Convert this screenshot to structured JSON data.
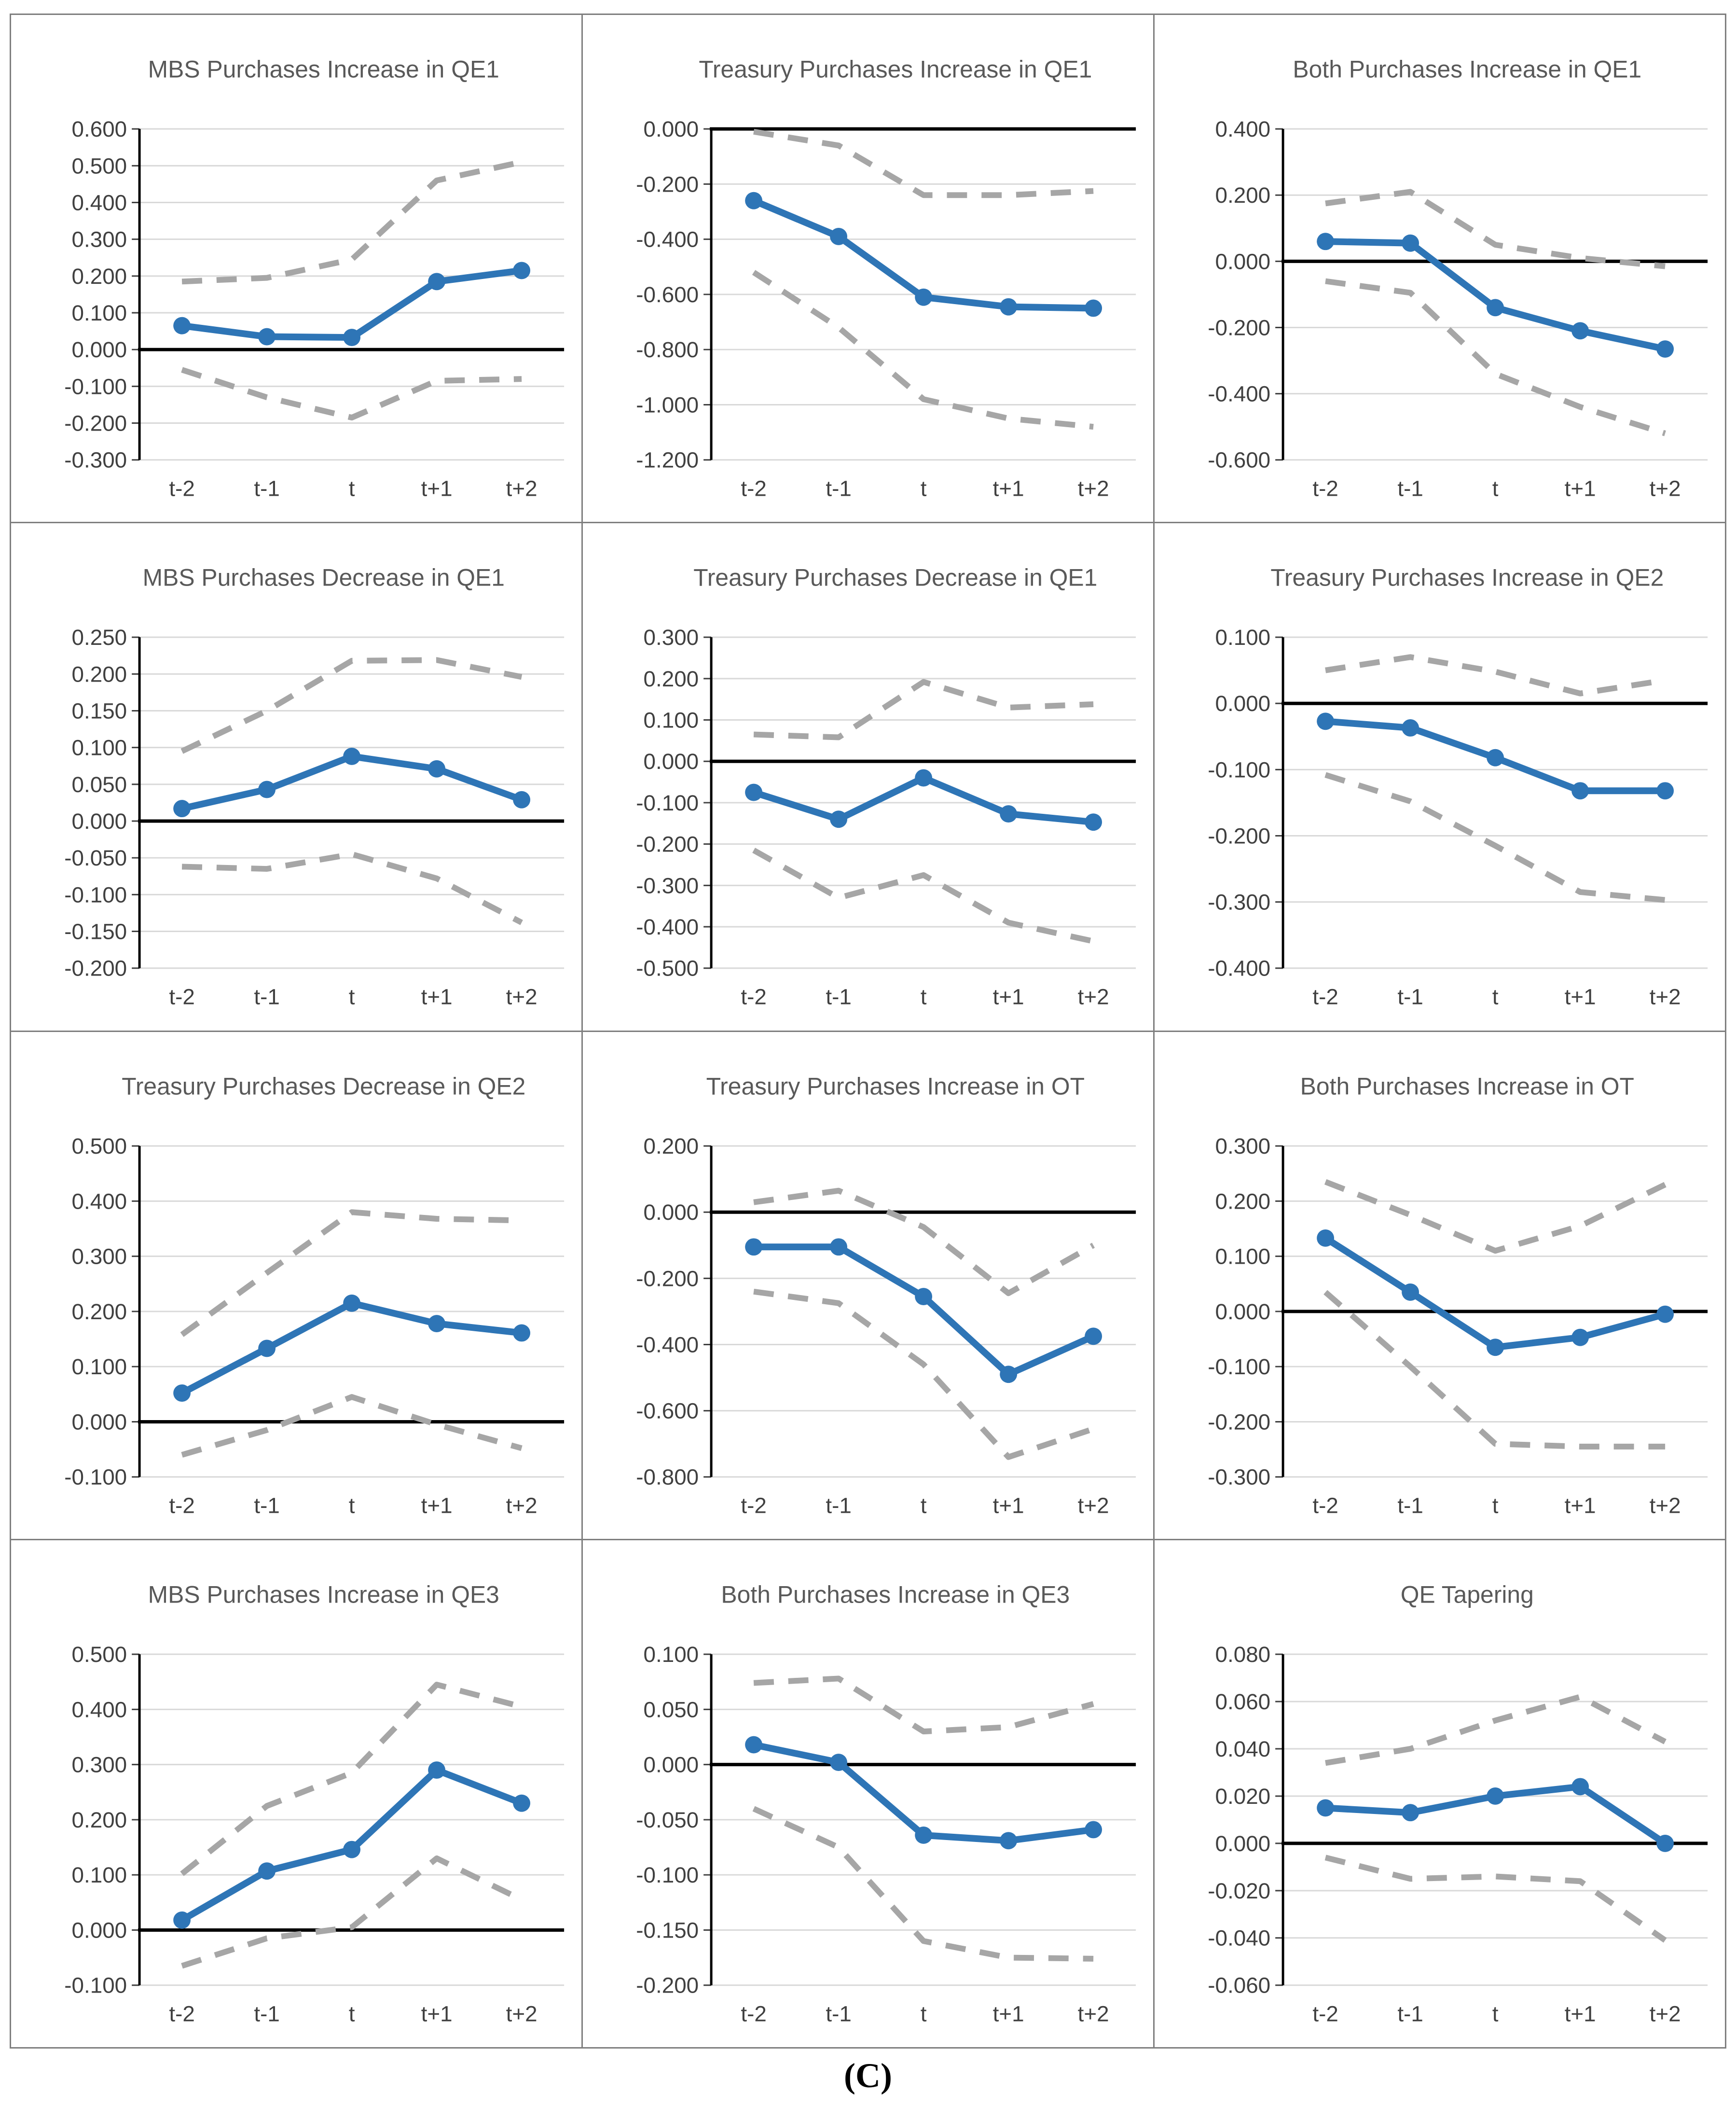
{
  "caption": "(C)",
  "colors": {
    "line": "#2E75B6",
    "band": "#A6A6A6",
    "grid": "#D9D9D9",
    "zero_line": "#000000",
    "axis": "#000000",
    "title": "#595959",
    "tick": "#404040",
    "panel_border": "#7F7F7F",
    "background": "#FFFFFF"
  },
  "x_labels": [
    "t-2",
    "t-1",
    "t",
    "t+1",
    "t+2"
  ],
  "chart_data": [
    {
      "type": "line",
      "title": "MBS Purchases Increase in QE1",
      "categories": [
        "t-2",
        "t-1",
        "t",
        "t+1",
        "t+2"
      ],
      "ylim": [
        -0.3,
        0.6
      ],
      "ytick_labels": [
        "0.600",
        "0.500",
        "0.400",
        "0.300",
        "0.200",
        "0.100",
        "0.000",
        "-0.100",
        "-0.200",
        "-0.300"
      ],
      "series": [
        {
          "name": "estimate",
          "style": "solid",
          "values": [
            0.065,
            0.035,
            0.033,
            0.185,
            0.215
          ]
        },
        {
          "name": "upper-band",
          "style": "dashed",
          "values": [
            0.185,
            0.195,
            0.245,
            0.46,
            0.51
          ]
        },
        {
          "name": "lower-band",
          "style": "dashed",
          "values": [
            -0.055,
            -0.13,
            -0.185,
            -0.085,
            -0.08
          ]
        }
      ]
    },
    {
      "type": "line",
      "title": "Treasury Purchases Increase in QE1",
      "categories": [
        "t-2",
        "t-1",
        "t",
        "t+1",
        "t+2"
      ],
      "ylim": [
        -1.2,
        0.0
      ],
      "ytick_labels": [
        "0.000",
        "-0.200",
        "-0.400",
        "-0.600",
        "-0.800",
        "-1.000",
        "-1.200"
      ],
      "series": [
        {
          "name": "estimate",
          "style": "solid",
          "values": [
            -0.26,
            -0.39,
            -0.61,
            -0.645,
            -0.65
          ]
        },
        {
          "name": "upper-band",
          "style": "dashed",
          "values": [
            -0.01,
            -0.06,
            -0.24,
            -0.24,
            -0.225
          ]
        },
        {
          "name": "lower-band",
          "style": "dashed",
          "values": [
            -0.52,
            -0.72,
            -0.98,
            -1.05,
            -1.08
          ]
        }
      ]
    },
    {
      "type": "line",
      "title": "Both Purchases Increase in QE1",
      "categories": [
        "t-2",
        "t-1",
        "t",
        "t+1",
        "t+2"
      ],
      "ylim": [
        -0.6,
        0.4
      ],
      "ytick_labels": [
        "0.400",
        "0.200",
        "0.000",
        "-0.200",
        "-0.400",
        "-0.600"
      ],
      "series": [
        {
          "name": "estimate",
          "style": "solid",
          "values": [
            0.06,
            0.055,
            -0.14,
            -0.21,
            -0.265
          ]
        },
        {
          "name": "upper-band",
          "style": "dashed",
          "values": [
            0.175,
            0.21,
            0.05,
            0.01,
            -0.015
          ]
        },
        {
          "name": "lower-band",
          "style": "dashed",
          "values": [
            -0.06,
            -0.095,
            -0.34,
            -0.44,
            -0.52
          ]
        }
      ]
    },
    {
      "type": "line",
      "title": "MBS Purchases Decrease in QE1",
      "categories": [
        "t-2",
        "t-1",
        "t",
        "t+1",
        "t+2"
      ],
      "ylim": [
        -0.2,
        0.25
      ],
      "ytick_labels": [
        "0.250",
        "0.200",
        "0.150",
        "0.100",
        "0.050",
        "0.000",
        "-0.050",
        "-0.100",
        "-0.150",
        "-0.200"
      ],
      "series": [
        {
          "name": "estimate",
          "style": "solid",
          "values": [
            0.017,
            0.043,
            0.088,
            0.071,
            0.029
          ]
        },
        {
          "name": "upper-band",
          "style": "dashed",
          "values": [
            0.095,
            0.15,
            0.218,
            0.219,
            0.196
          ]
        },
        {
          "name": "lower-band",
          "style": "dashed",
          "values": [
            -0.062,
            -0.065,
            -0.045,
            -0.078,
            -0.138
          ]
        }
      ]
    },
    {
      "type": "line",
      "title": "Treasury Purchases Decrease in QE1",
      "categories": [
        "t-2",
        "t-1",
        "t",
        "t+1",
        "t+2"
      ],
      "ylim": [
        -0.5,
        0.3
      ],
      "ytick_labels": [
        "0.300",
        "0.200",
        "0.100",
        "0.000",
        "-0.100",
        "-0.200",
        "-0.300",
        "-0.400",
        "-0.500"
      ],
      "series": [
        {
          "name": "estimate",
          "style": "solid",
          "values": [
            -0.075,
            -0.14,
            -0.04,
            -0.127,
            -0.147
          ]
        },
        {
          "name": "upper-band",
          "style": "dashed",
          "values": [
            0.065,
            0.058,
            0.192,
            0.13,
            0.138
          ]
        },
        {
          "name": "lower-band",
          "style": "dashed",
          "values": [
            -0.215,
            -0.33,
            -0.275,
            -0.39,
            -0.435
          ]
        }
      ]
    },
    {
      "type": "line",
      "title": "Treasury Purchases Increase in QE2",
      "categories": [
        "t-2",
        "t-1",
        "t",
        "t+1",
        "t+2"
      ],
      "ylim": [
        -0.4,
        0.1
      ],
      "ytick_labels": [
        "0.100",
        "0.000",
        "-0.100",
        "-0.200",
        "-0.300",
        "-0.400"
      ],
      "series": [
        {
          "name": "estimate",
          "style": "solid",
          "values": [
            -0.027,
            -0.037,
            -0.082,
            -0.132,
            -0.132
          ]
        },
        {
          "name": "upper-band",
          "style": "dashed",
          "values": [
            0.05,
            0.07,
            0.048,
            0.015,
            0.035
          ]
        },
        {
          "name": "lower-band",
          "style": "dashed",
          "values": [
            -0.108,
            -0.148,
            -0.215,
            -0.285,
            -0.297
          ]
        }
      ]
    },
    {
      "type": "line",
      "title": "Treasury Purchases Decrease in QE2",
      "categories": [
        "t-2",
        "t-1",
        "t",
        "t+1",
        "t+2"
      ],
      "ylim": [
        -0.1,
        0.5
      ],
      "ytick_labels": [
        "0.500",
        "0.400",
        "0.300",
        "0.200",
        "0.100",
        "0.000",
        "-0.100"
      ],
      "series": [
        {
          "name": "estimate",
          "style": "solid",
          "values": [
            0.052,
            0.133,
            0.215,
            0.178,
            0.161
          ]
        },
        {
          "name": "upper-band",
          "style": "dashed",
          "values": [
            0.158,
            0.27,
            0.38,
            0.368,
            0.365
          ]
        },
        {
          "name": "lower-band",
          "style": "dashed",
          "values": [
            -0.06,
            -0.015,
            0.045,
            -0.005,
            -0.048
          ]
        }
      ]
    },
    {
      "type": "line",
      "title": "Treasury Purchases Increase in OT",
      "categories": [
        "t-2",
        "t-1",
        "t",
        "t+1",
        "t+2"
      ],
      "ylim": [
        -0.8,
        0.2
      ],
      "ytick_labels": [
        "0.200",
        "0.000",
        "-0.200",
        "-0.400",
        "-0.600",
        "-0.800"
      ],
      "series": [
        {
          "name": "estimate",
          "style": "solid",
          "values": [
            -0.105,
            -0.105,
            -0.255,
            -0.49,
            -0.375
          ]
        },
        {
          "name": "upper-band",
          "style": "dashed",
          "values": [
            0.03,
            0.065,
            -0.045,
            -0.245,
            -0.1
          ]
        },
        {
          "name": "lower-band",
          "style": "dashed",
          "values": [
            -0.24,
            -0.275,
            -0.46,
            -0.74,
            -0.655
          ]
        }
      ]
    },
    {
      "type": "line",
      "title": "Both Purchases Increase in OT",
      "categories": [
        "t-2",
        "t-1",
        "t",
        "t+1",
        "t+2"
      ],
      "ylim": [
        -0.3,
        0.3
      ],
      "ytick_labels": [
        "0.300",
        "0.200",
        "0.100",
        "0.000",
        "-0.100",
        "-0.200",
        "-0.300"
      ],
      "series": [
        {
          "name": "estimate",
          "style": "solid",
          "values": [
            0.133,
            0.035,
            -0.065,
            -0.047,
            -0.005
          ]
        },
        {
          "name": "upper-band",
          "style": "dashed",
          "values": [
            0.235,
            0.175,
            0.11,
            0.155,
            0.23
          ]
        },
        {
          "name": "lower-band",
          "style": "dashed",
          "values": [
            0.035,
            -0.1,
            -0.24,
            -0.245,
            -0.245
          ]
        }
      ]
    },
    {
      "type": "line",
      "title": "MBS Purchases Increase in QE3",
      "categories": [
        "t-2",
        "t-1",
        "t",
        "t+1",
        "t+2"
      ],
      "ylim": [
        -0.1,
        0.5
      ],
      "ytick_labels": [
        "0.500",
        "0.400",
        "0.300",
        "0.200",
        "0.100",
        "0.000",
        "-0.100"
      ],
      "series": [
        {
          "name": "estimate",
          "style": "solid",
          "values": [
            0.018,
            0.107,
            0.146,
            0.29,
            0.23
          ]
        },
        {
          "name": "upper-band",
          "style": "dashed",
          "values": [
            0.102,
            0.225,
            0.285,
            0.445,
            0.405
          ]
        },
        {
          "name": "lower-band",
          "style": "dashed",
          "values": [
            -0.065,
            -0.015,
            0.005,
            0.13,
            0.055
          ]
        }
      ]
    },
    {
      "type": "line",
      "title": "Both Purchases Increase in QE3",
      "categories": [
        "t-2",
        "t-1",
        "t",
        "t+1",
        "t+2"
      ],
      "ylim": [
        -0.2,
        0.1
      ],
      "ytick_labels": [
        "0.100",
        "0.050",
        "0.000",
        "-0.050",
        "-0.100",
        "-0.150",
        "-0.200"
      ],
      "series": [
        {
          "name": "estimate",
          "style": "solid",
          "values": [
            0.018,
            0.002,
            -0.064,
            -0.069,
            -0.059
          ]
        },
        {
          "name": "upper-band",
          "style": "dashed",
          "values": [
            0.074,
            0.078,
            0.03,
            0.034,
            0.055
          ]
        },
        {
          "name": "lower-band",
          "style": "dashed",
          "values": [
            -0.04,
            -0.075,
            -0.16,
            -0.175,
            -0.176
          ]
        }
      ]
    },
    {
      "type": "line",
      "title": "QE Tapering",
      "categories": [
        "t-2",
        "t-1",
        "t",
        "t+1",
        "t+2"
      ],
      "ylim": [
        -0.06,
        0.08
      ],
      "ytick_labels": [
        "0.080",
        "0.060",
        "0.040",
        "0.020",
        "0.000",
        "-0.020",
        "-0.040",
        "-0.060"
      ],
      "series": [
        {
          "name": "estimate",
          "style": "solid",
          "values": [
            0.015,
            0.013,
            0.02,
            0.024,
            0.0
          ]
        },
        {
          "name": "upper-band",
          "style": "dashed",
          "values": [
            0.034,
            0.04,
            0.052,
            0.062,
            0.043
          ]
        },
        {
          "name": "lower-band",
          "style": "dashed",
          "values": [
            -0.006,
            -0.015,
            -0.014,
            -0.016,
            -0.041
          ]
        }
      ]
    }
  ]
}
